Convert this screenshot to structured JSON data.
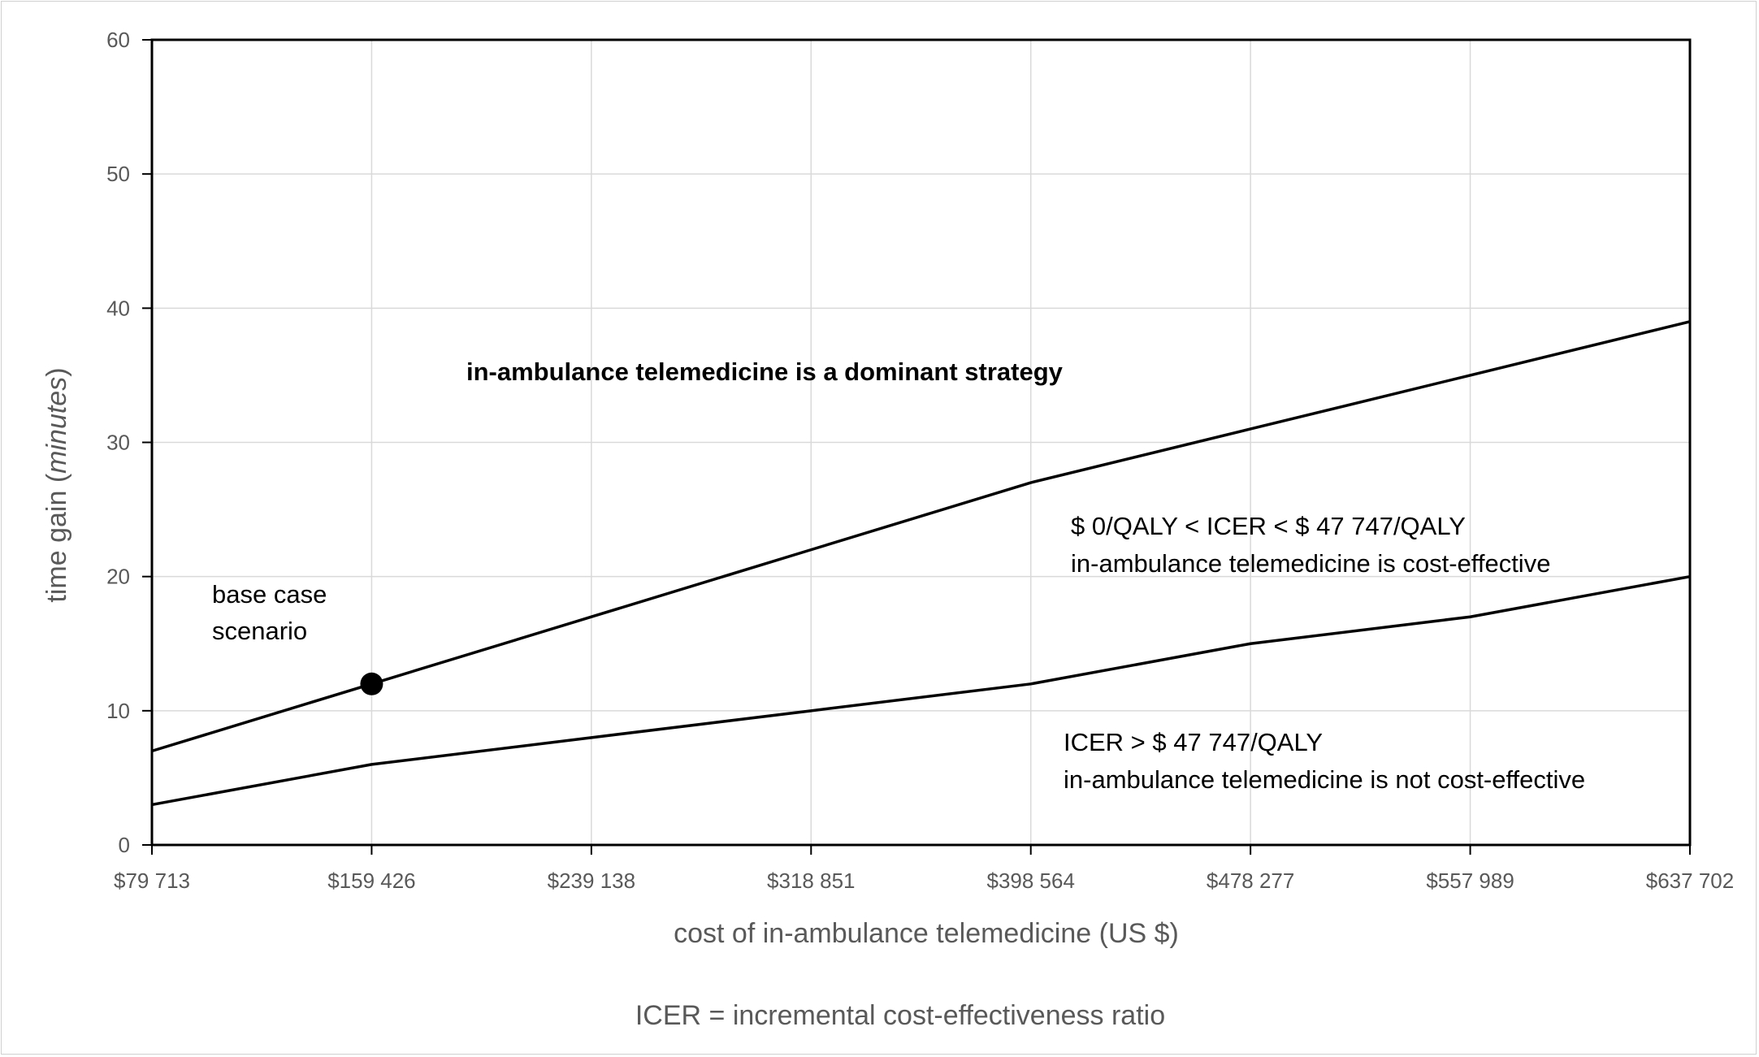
{
  "chart_data": {
    "type": "line",
    "x_categories": [
      "$79 713",
      "$159 426",
      "$239 138",
      "$318 851",
      "$398 564",
      "$478 277",
      "$557 989",
      "$637 702"
    ],
    "x_values": [
      79713,
      159426,
      239138,
      318851,
      398564,
      478277,
      557989,
      637702
    ],
    "xlabel": "cost of in-ambulance telemedicine (US $)",
    "ylabel_prefix": "time gain (",
    "ylabel_italic": "minutes",
    "ylabel_suffix": ")",
    "ylim": [
      0,
      60
    ],
    "y_ticks": [
      0,
      10,
      20,
      30,
      40,
      50,
      60
    ],
    "grid": true,
    "series": [
      {
        "values": [
          7,
          12,
          17,
          22,
          27,
          31,
          35,
          39
        ],
        "color": "#000000"
      },
      {
        "values": [
          3,
          6,
          8,
          10,
          12,
          15,
          17,
          20
        ],
        "color": "#000000"
      }
    ],
    "highlight_point": {
      "x_index": 1,
      "series_index": 0,
      "value": 12
    },
    "annotations": {
      "base_case_line1": "base case",
      "base_case_line2": "scenario",
      "dominant": "in-ambulance telemedicine is a dominant strategy",
      "cost_effective_line1": "$ 0/QALY < ICER < $ 47 747/QALY",
      "cost_effective_line2": "in-ambulance telemedicine is cost-effective",
      "not_cost_effective_line1": "ICER > $ 47 747/QALY",
      "not_cost_effective_line2": "in-ambulance telemedicine is not cost-effective"
    },
    "footnote": "ICER = incremental cost-effectiveness ratio"
  }
}
